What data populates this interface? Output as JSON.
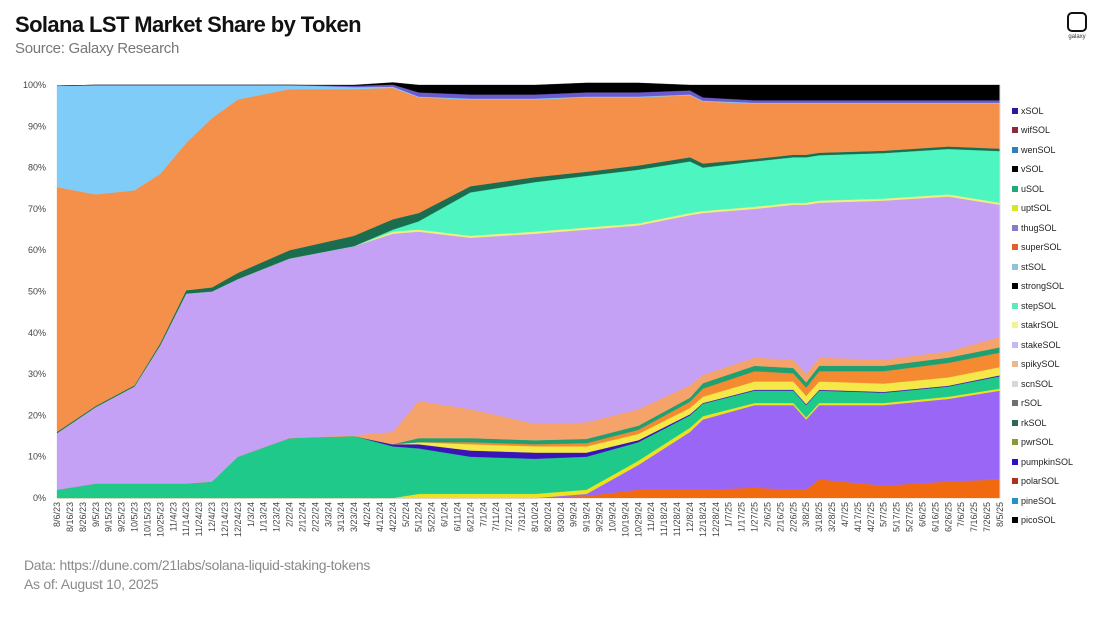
{
  "header": {
    "title": "Solana LST Market Share by Token",
    "subtitle": "Source: Galaxy Research",
    "logo_text": "galaxy"
  },
  "footer": {
    "data_source": "Data: https://dune.com/21labs/solana-liquid-staking-tokens",
    "as_of": "As of: August 10, 2025"
  },
  "chart_data": {
    "type": "area",
    "stacked": true,
    "title": "Solana LST Market Share by Token",
    "subtitle": "Source: Galaxy Research",
    "xlabel": "",
    "ylabel": "",
    "ylim": [
      0,
      100
    ],
    "xlim": [
      "2023-08-06",
      "2025-08-05"
    ],
    "grid": false,
    "legend_position": "right",
    "y_ticks": [
      "0%",
      "10%",
      "20%",
      "30%",
      "40%",
      "50%",
      "60%",
      "70%",
      "80%",
      "90%",
      "100%"
    ],
    "x_ticks": [
      "8/6/23",
      "8/16/23",
      "8/26/23",
      "9/5/23",
      "9/15/23",
      "9/25/23",
      "10/5/23",
      "10/15/23",
      "10/25/23",
      "11/4/23",
      "11/14/23",
      "11/24/23",
      "12/4/23",
      "12/14/23",
      "12/24/23",
      "1/3/24",
      "1/13/24",
      "1/23/24",
      "2/2/24",
      "2/12/24",
      "2/22/24",
      "3/3/24",
      "3/13/24",
      "3/23/24",
      "4/2/24",
      "4/12/24",
      "4/22/24",
      "5/2/24",
      "5/12/24",
      "5/22/24",
      "6/1/24",
      "6/11/24",
      "6/21/24",
      "7/1/24",
      "7/11/24",
      "7/21/24",
      "7/31/24",
      "8/10/24",
      "8/20/24",
      "8/30/24",
      "9/9/24",
      "9/19/24",
      "9/29/24",
      "10/9/24",
      "10/19/24",
      "10/29/24",
      "11/8/24",
      "11/18/24",
      "11/28/24",
      "12/8/24",
      "12/18/24",
      "12/28/24",
      "1/7/25",
      "1/17/25",
      "1/27/25",
      "2/6/25",
      "2/16/25",
      "2/26/25",
      "3/8/25",
      "3/18/25",
      "3/28/25",
      "4/7/25",
      "4/17/25",
      "4/27/25",
      "5/7/25",
      "5/17/25",
      "5/27/25",
      "6/6/25",
      "6/16/25",
      "6/26/25",
      "7/6/25",
      "7/16/25",
      "7/26/25",
      "8/5/25"
    ],
    "x": [
      "2023-08-06",
      "2023-09-05",
      "2023-10-05",
      "2023-10-25",
      "2023-11-14",
      "2023-12-04",
      "2023-12-24",
      "2024-02-02",
      "2024-03-23",
      "2024-04-22",
      "2024-05-12",
      "2024-06-21",
      "2024-08-10",
      "2024-09-19",
      "2024-10-29",
      "2024-12-08",
      "2024-12-18",
      "2025-01-27",
      "2025-02-26",
      "2025-03-08",
      "2025-03-18",
      "2025-05-07",
      "2025-06-26",
      "2025-08-05"
    ],
    "series": [
      {
        "color": "#f26a10",
        "values": [
          0,
          0,
          0,
          0,
          0,
          0,
          0,
          0,
          0,
          0,
          0,
          0,
          0,
          0.5,
          2,
          2,
          2,
          2.5,
          2,
          2,
          4.5,
          3,
          4,
          4.5
        ]
      },
      {
        "color": "#9a66f5",
        "values": [
          0,
          0,
          0,
          0,
          0,
          0,
          0,
          0,
          0,
          0,
          0,
          0,
          0,
          0.5,
          6,
          14,
          17,
          20,
          20.5,
          17,
          18,
          19.5,
          20,
          21.5
        ]
      },
      {
        "color": "#eee21c",
        "values": [
          0,
          0,
          0,
          0,
          0,
          0,
          0,
          0,
          0,
          0,
          1,
          1,
          1,
          1,
          1,
          1,
          0.8,
          0.5,
          0.5,
          0.5,
          0.5,
          0.5,
          0.5,
          0.5
        ]
      },
      {
        "color": "#1fc98a",
        "values": [
          2,
          3.5,
          3.5,
          3.5,
          3.5,
          4,
          10,
          14.5,
          15,
          12.5,
          11,
          9,
          8.5,
          8,
          4.5,
          3,
          3,
          3,
          3,
          3,
          3,
          2.5,
          2.5,
          3
        ]
      },
      {
        "color": "#3a14b8",
        "values": [
          0,
          0,
          0,
          0,
          0,
          0,
          0,
          0,
          0,
          0.5,
          1,
          1.5,
          1.5,
          1,
          0.5,
          0.3,
          0.2,
          0.2,
          0.2,
          0.2,
          0.2,
          0.2,
          0.2,
          0.2
        ]
      },
      {
        "color": "#f5e94a",
        "values": [
          0,
          0,
          0,
          0,
          0,
          0,
          0,
          0,
          0,
          0,
          0.5,
          1.5,
          1.5,
          1.5,
          1.5,
          1.5,
          1.5,
          2,
          2,
          2,
          2,
          2,
          2,
          2
        ]
      },
      {
        "color": "#f58a30",
        "values": [
          0,
          0,
          0,
          0,
          0,
          0,
          0,
          0,
          0,
          0,
          0,
          0.5,
          0.5,
          0.8,
          1,
          1.5,
          2,
          2.5,
          2,
          2,
          2.5,
          3,
          3.5,
          3.5
        ]
      },
      {
        "color": "#20a070",
        "values": [
          0,
          0,
          0,
          0,
          0,
          0,
          0,
          0,
          0,
          0,
          1,
          1,
          1,
          1,
          1,
          1,
          1.3,
          1.3,
          1.3,
          1.3,
          1.3,
          1.3,
          1.3,
          1.3
        ]
      },
      {
        "color": "#f5a36b",
        "values": [
          0,
          0,
          0,
          0,
          0,
          0,
          0,
          0,
          0.2,
          3,
          9,
          7,
          4,
          4,
          4,
          3,
          2,
          2,
          2,
          2,
          2,
          1.5,
          1.5,
          2.5
        ]
      },
      {
        "color": "#c4a1f5",
        "values": [
          13.7,
          18.5,
          23.5,
          33.5,
          46,
          46,
          43,
          43.5,
          45.8,
          48,
          41,
          41.5,
          46,
          46.7,
          44.5,
          41.2,
          39.2,
          36,
          37.5,
          41,
          37.5,
          38.5,
          37.5,
          32
        ]
      },
      {
        "color": "#f0f07a",
        "values": [
          0,
          0,
          0,
          0,
          0,
          0,
          0,
          0,
          0,
          0.5,
          0.5,
          0.5,
          0.5,
          0.5,
          0.5,
          0.5,
          0.5,
          0.5,
          0.5,
          0.5,
          0.5,
          0.5,
          0.5,
          0.5
        ]
      },
      {
        "color": "#4df5c0",
        "values": [
          0,
          0,
          0,
          0,
          0,
          0,
          0,
          0,
          0,
          0.5,
          2,
          10.5,
          12,
          12.5,
          13,
          12.5,
          10.5,
          11,
          11,
          11,
          11,
          11,
          11,
          12.5
        ]
      },
      {
        "color": "#1a6e4f",
        "values": [
          0.3,
          0.3,
          0.3,
          0.5,
          0.8,
          1,
          1.5,
          2,
          2.5,
          2.5,
          2,
          1.5,
          1.2,
          1,
          1,
          1,
          1,
          0.6,
          0.6,
          0.6,
          0.6,
          0.6,
          0.6,
          0.6
        ]
      },
      {
        "color": "#f5904a",
        "values": [
          59.3,
          51.2,
          47.2,
          41,
          35.7,
          41,
          42,
          39,
          35.5,
          31.8,
          28,
          21,
          18.8,
          18,
          16.5,
          15,
          15,
          13.4,
          12.4,
          12.4,
          11.9,
          11.4,
          10.4,
          10.9
        ]
      },
      {
        "color": "#80ccf8",
        "values": [
          24.5,
          26.5,
          25.5,
          21.5,
          14,
          8,
          3.5,
          1,
          0.5,
          0.3,
          0.2,
          0.2,
          0.2,
          0.2,
          0.2,
          0.2,
          0.2,
          0.2,
          0.2,
          0.2,
          0.2,
          0.2,
          0.2,
          0.2
        ]
      },
      {
        "color": "#6a5acd",
        "values": [
          0,
          0,
          0,
          0,
          0,
          0,
          0,
          0,
          0.3,
          0.5,
          1,
          1,
          1,
          1,
          1,
          1,
          0.8,
          0.6,
          0.6,
          0.6,
          0.6,
          0.6,
          0.6,
          0.6
        ]
      },
      {
        "color": "#000000",
        "values": [
          0,
          0,
          0,
          0,
          0,
          0,
          0,
          0,
          0.2,
          0.5,
          1.8,
          2.3,
          2.3,
          2.3,
          2.3,
          1.3,
          3,
          3.7,
          3.7,
          3.7,
          3.7,
          3.7,
          3.7,
          3.7
        ]
      }
    ],
    "legend": [
      {
        "name": "xSOL",
        "color": "#2a1a9e"
      },
      {
        "name": "wifSOL",
        "color": "#8b2a3a"
      },
      {
        "name": "wenSOL",
        "color": "#2f7fc0"
      },
      {
        "name": "vSOL",
        "color": "#000000"
      },
      {
        "name": "uSOL",
        "color": "#1fa87a"
      },
      {
        "name": "uptSOL",
        "color": "#d8e820"
      },
      {
        "name": "thugSOL",
        "color": "#8a7ac8"
      },
      {
        "name": "superSOL",
        "color": "#e0602a"
      },
      {
        "name": "stSOL",
        "color": "#8cc4e0"
      },
      {
        "name": "strongSOL",
        "color": "#000000"
      },
      {
        "name": "stepSOL",
        "color": "#5ee8c0"
      },
      {
        "name": "stakrSOL",
        "color": "#f0f590"
      },
      {
        "name": "stakeSOL",
        "color": "#c8b8f0"
      },
      {
        "name": "spikySOL",
        "color": "#e8b890"
      },
      {
        "name": "scnSOL",
        "color": "#d8d8d8"
      },
      {
        "name": "rSOL",
        "color": "#707070"
      },
      {
        "name": "rkSOL",
        "color": "#2a6a50"
      },
      {
        "name": "pwrSOL",
        "color": "#8a9a30"
      },
      {
        "name": "pumpkinSOL",
        "color": "#2a10c8"
      },
      {
        "name": "polarSOL",
        "color": "#b03020"
      },
      {
        "name": "pineSOL",
        "color": "#2090d0"
      },
      {
        "name": "picoSOL",
        "color": "#000000"
      }
    ]
  }
}
